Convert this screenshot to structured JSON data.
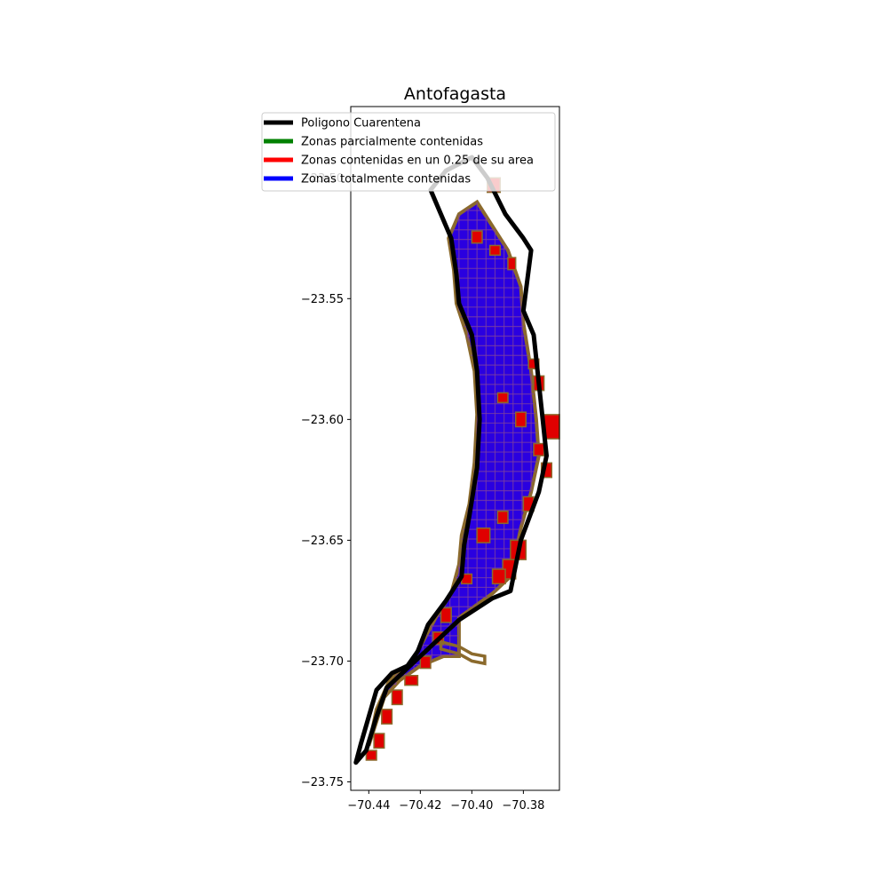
{
  "chart_data": {
    "type": "map",
    "title": "Antofagasta",
    "xlabel": "",
    "ylabel": "",
    "xlim": [
      -70.447,
      -70.366
    ],
    "ylim": [
      -23.7535,
      -23.4705
    ],
    "x_ticks": [
      -70.44,
      -70.42,
      -70.4,
      -70.38
    ],
    "x_tick_labels": [
      "−70.44",
      "−70.42",
      "−70.40",
      "−70.38"
    ],
    "y_ticks": [
      -23.5,
      -23.55,
      -23.6,
      -23.65,
      -23.7,
      -23.75
    ],
    "y_tick_labels": [
      "−23.50",
      "−23.55",
      "−23.60",
      "−23.65",
      "−23.70",
      "−23.75"
    ],
    "grid": false,
    "legend_position": "top-left",
    "legend": [
      {
        "label": "Poligono Cuarentena",
        "color": "#000000"
      },
      {
        "label": "Zonas parcialmente contenidas",
        "color": "#008000"
      },
      {
        "label": "Zonas contenidas en un 0.25 de su area",
        "color": "#ff0000"
      },
      {
        "label": "Zonas totalmente contenidas",
        "color": "#0000ff"
      }
    ],
    "quarantine_polygon": [
      [
        -70.4,
        -23.4915
      ],
      [
        -70.394,
        -23.5
      ],
      [
        -70.387,
        -23.515
      ],
      [
        -70.38,
        -23.525
      ],
      [
        -70.377,
        -23.53
      ],
      [
        -70.38,
        -23.555
      ],
      [
        -70.376,
        -23.565
      ],
      [
        -70.373,
        -23.595
      ],
      [
        -70.371,
        -23.615
      ],
      [
        -70.374,
        -23.63
      ],
      [
        -70.381,
        -23.65
      ],
      [
        -70.385,
        -23.671
      ],
      [
        -70.392,
        -23.674
      ],
      [
        -70.405,
        -23.683
      ],
      [
        -70.415,
        -23.693
      ],
      [
        -70.425,
        -23.703
      ],
      [
        -70.433,
        -23.711
      ],
      [
        -70.437,
        -23.723
      ],
      [
        -70.441,
        -23.737
      ],
      [
        -70.445,
        -23.742
      ],
      [
        -70.443,
        -23.734
      ],
      [
        -70.44,
        -23.723
      ],
      [
        -70.437,
        -23.712
      ],
      [
        -70.431,
        -23.705
      ],
      [
        -70.425,
        -23.702
      ],
      [
        -70.421,
        -23.696
      ],
      [
        -70.417,
        -23.685
      ],
      [
        -70.41,
        -23.675
      ],
      [
        -70.404,
        -23.665
      ],
      [
        -70.403,
        -23.652
      ],
      [
        -70.401,
        -23.64
      ],
      [
        -70.398,
        -23.62
      ],
      [
        -70.397,
        -23.6
      ],
      [
        -70.398,
        -23.58
      ],
      [
        -70.4,
        -23.565
      ],
      [
        -70.405,
        -23.552
      ],
      [
        -70.406,
        -23.54
      ],
      [
        -70.408,
        -23.525
      ],
      [
        -70.412,
        -23.515
      ],
      [
        -70.416,
        -23.505
      ],
      [
        -70.41,
        -23.497
      ],
      [
        -70.4,
        -23.4915
      ]
    ],
    "quarantine_polygon_color": "#000000",
    "zones_bounding_region": [
      [
        -70.398,
        -23.51
      ],
      [
        -70.392,
        -23.52
      ],
      [
        -70.386,
        -23.53
      ],
      [
        -70.381,
        -23.545
      ],
      [
        -70.38,
        -23.56
      ],
      [
        -70.377,
        -23.58
      ],
      [
        -70.375,
        -23.6
      ],
      [
        -70.374,
        -23.615
      ],
      [
        -70.377,
        -23.63
      ],
      [
        -70.381,
        -23.645
      ],
      [
        -70.385,
        -23.665
      ],
      [
        -70.392,
        -23.672
      ],
      [
        -70.405,
        -23.682
      ],
      [
        -70.405,
        -23.698
      ],
      [
        -70.411,
        -23.698
      ],
      [
        -70.42,
        -23.702
      ],
      [
        -70.428,
        -23.708
      ],
      [
        -70.434,
        -23.715
      ],
      [
        -70.437,
        -23.725
      ],
      [
        -70.44,
        -23.735
      ],
      [
        -70.437,
        -23.72
      ],
      [
        -70.432,
        -23.708
      ],
      [
        -70.424,
        -23.701
      ],
      [
        -70.419,
        -23.692
      ],
      [
        -70.414,
        -23.682
      ],
      [
        -70.408,
        -23.672
      ],
      [
        -70.405,
        -23.66
      ],
      [
        -70.404,
        -23.648
      ],
      [
        -70.401,
        -23.635
      ],
      [
        -70.399,
        -23.618
      ],
      [
        -70.398,
        -23.598
      ],
      [
        -70.399,
        -23.58
      ],
      [
        -70.402,
        -23.565
      ],
      [
        -70.406,
        -23.552
      ],
      [
        -70.407,
        -23.538
      ],
      [
        -70.409,
        -23.525
      ],
      [
        -70.405,
        -23.515
      ],
      [
        -70.398,
        -23.51
      ]
    ],
    "zone_colors": {
      "parcial_outline": "#8b6a2c",
      "quarter_fill": "#e00000",
      "total_fill": "#2a00e0",
      "total_outline": "#7b3fa0"
    },
    "quarter_zones": [
      [
        -70.394,
        -23.5,
        0.005,
        0.006
      ],
      [
        -70.4,
        -23.522,
        0.004,
        0.005
      ],
      [
        -70.393,
        -23.528,
        0.004,
        0.004
      ],
      [
        -70.386,
        -23.533,
        0.003,
        0.005
      ],
      [
        -70.378,
        -23.575,
        0.004,
        0.004
      ],
      [
        -70.376,
        -23.582,
        0.004,
        0.006
      ],
      [
        -70.39,
        -23.589,
        0.004,
        0.004
      ],
      [
        -70.383,
        -23.597,
        0.004,
        0.006
      ],
      [
        -70.372,
        -23.598,
        0.006,
        0.01
      ],
      [
        -70.376,
        -23.61,
        0.004,
        0.005
      ],
      [
        -70.373,
        -23.618,
        0.004,
        0.006
      ],
      [
        -70.38,
        -23.632,
        0.004,
        0.006
      ],
      [
        -70.39,
        -23.638,
        0.004,
        0.005
      ],
      [
        -70.398,
        -23.645,
        0.005,
        0.006
      ],
      [
        -70.385,
        -23.65,
        0.006,
        0.008
      ],
      [
        -70.388,
        -23.658,
        0.005,
        0.008
      ],
      [
        -70.392,
        -23.662,
        0.005,
        0.006
      ],
      [
        -70.404,
        -23.664,
        0.004,
        0.004
      ],
      [
        -70.412,
        -23.678,
        0.004,
        0.006
      ],
      [
        -70.415,
        -23.688,
        0.004,
        0.005
      ],
      [
        -70.42,
        -23.698,
        0.004,
        0.005
      ],
      [
        -70.426,
        -23.706,
        0.005,
        0.004
      ],
      [
        -70.431,
        -23.712,
        0.004,
        0.006
      ],
      [
        -70.435,
        -23.72,
        0.004,
        0.006
      ],
      [
        -70.438,
        -23.73,
        0.004,
        0.006
      ],
      [
        -70.441,
        -23.737,
        0.004,
        0.004
      ]
    ],
    "pier_outline": [
      [
        -70.412,
        -23.692
      ],
      [
        -70.405,
        -23.694
      ],
      [
        -70.4,
        -23.697
      ],
      [
        -70.395,
        -23.698
      ],
      [
        -70.395,
        -23.701
      ],
      [
        -70.4,
        -23.7
      ],
      [
        -70.405,
        -23.697
      ],
      [
        -70.412,
        -23.695
      ]
    ]
  }
}
